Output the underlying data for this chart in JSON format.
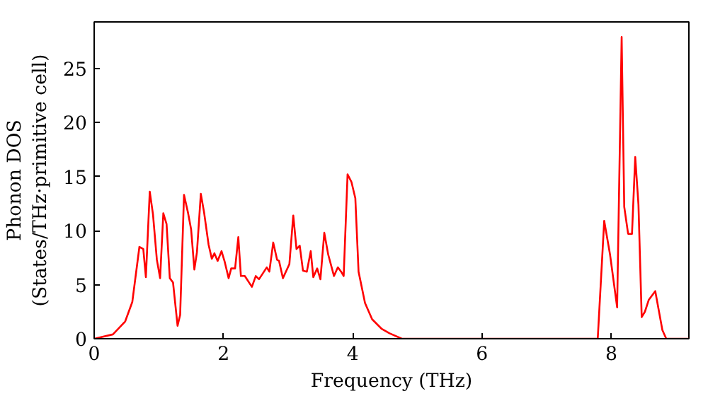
{
  "chart_data": {
    "type": "line",
    "xlabel": "Frequency (THz)",
    "ylabel": "Phonon DOS\n(States/THz·primitive cell)",
    "x": [
      0,
      0.29,
      0.48,
      0.59,
      0.7,
      0.76,
      0.8,
      0.86,
      0.91,
      0.97,
      1.02,
      1.07,
      1.12,
      1.17,
      1.22,
      1.29,
      1.33,
      1.39,
      1.45,
      1.5,
      1.55,
      1.59,
      1.65,
      1.7,
      1.77,
      1.82,
      1.86,
      1.91,
      1.97,
      2.02,
      2.08,
      2.12,
      2.18,
      2.23,
      2.27,
      2.33,
      2.44,
      2.5,
      2.55,
      2.67,
      2.71,
      2.77,
      2.83,
      2.86,
      2.92,
      3.02,
      3.08,
      3.13,
      3.18,
      3.23,
      3.29,
      3.35,
      3.39,
      3.45,
      3.5,
      3.56,
      3.62,
      3.71,
      3.77,
      3.82,
      3.86,
      3.92,
      3.98,
      4.04,
      4.09,
      4.19,
      4.3,
      4.45,
      4.57,
      4.76,
      7.79,
      7.89,
      7.98,
      8.09,
      8.16,
      8.2,
      8.26,
      8.32,
      8.37,
      8.42,
      8.47,
      8.52,
      8.58,
      8.68,
      8.79,
      8.85,
      9.2
    ],
    "series": [
      {
        "color": "#ff0000",
        "values": [
          0,
          0.4,
          1.6,
          3.4,
          8.5,
          8.3,
          5.7,
          13.6,
          11.5,
          7.3,
          5.6,
          11.6,
          10.6,
          5.6,
          5.2,
          1.2,
          2.2,
          13.3,
          11.7,
          10.1,
          6.4,
          8.0,
          13.4,
          11.7,
          8.7,
          7.4,
          7.9,
          7.2,
          8.1,
          7.1,
          5.6,
          6.5,
          6.5,
          9.4,
          5.8,
          5.8,
          4.8,
          5.8,
          5.5,
          6.6,
          6.2,
          8.9,
          7.3,
          7.2,
          5.6,
          6.9,
          11.4,
          8.3,
          8.6,
          6.3,
          6.2,
          8.1,
          5.7,
          6.5,
          5.5,
          9.8,
          7.8,
          5.8,
          6.6,
          6.2,
          5.8,
          15.2,
          14.5,
          13.0,
          6.2,
          3.3,
          1.8,
          0.9,
          0.5,
          0,
          0,
          10.9,
          7.8,
          2.9,
          27.9,
          12.2,
          9.7,
          9.7,
          16.8,
          12.4,
          2.0,
          2.5,
          3.6,
          4.4,
          0.8,
          0,
          0
        ]
      }
    ],
    "xlim": [
      0,
      9.2
    ],
    "ylim": [
      0,
      29.3
    ],
    "xticks": [
      0,
      2,
      4,
      6,
      8
    ],
    "yticks": [
      0,
      5,
      10,
      15,
      20,
      25
    ],
    "grid": false,
    "line_style": "solid"
  }
}
